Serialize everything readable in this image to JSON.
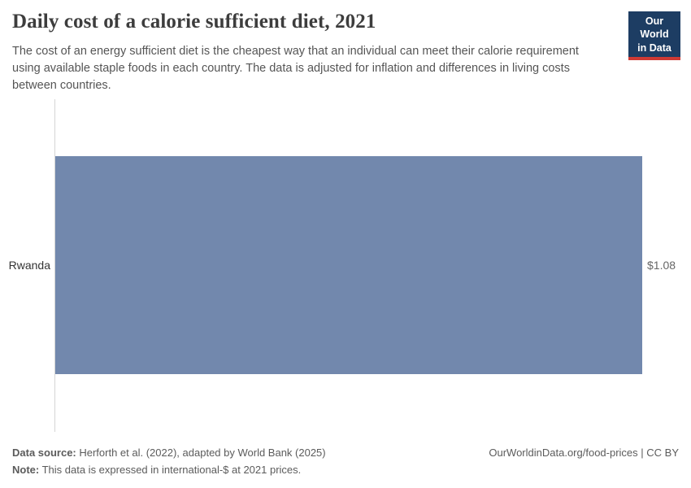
{
  "header": {
    "title": "Daily cost of a calorie sufficient diet, 2021",
    "logo": {
      "line1": "Our World",
      "line2": "in Data"
    }
  },
  "subtitle": "The cost of an energy sufficient diet is the cheapest way that an individual can meet their calorie requirement using available staple foods in each country. The data is adjusted for inflation and differences in living costs between countries.",
  "chart_data": {
    "type": "bar",
    "orientation": "horizontal",
    "title": "Daily cost of a calorie sufficient diet, 2021",
    "categories": [
      "Rwanda"
    ],
    "values": [
      1.08
    ],
    "value_labels": [
      "$1.08"
    ],
    "xlabel": "",
    "ylabel": "",
    "xlim": [
      0,
      1.08
    ],
    "grid": false,
    "legend": false,
    "bar_color": "#7288ad"
  },
  "footer": {
    "data_source_label": "Data source:",
    "data_source_text": " Herforth et al. (2022), adapted by World Bank (2025)",
    "note_label": "Note:",
    "note_text": " This data is expressed in international-$ at 2021 prices.",
    "license": "OurWorldinData.org/food-prices | CC BY"
  },
  "colors": {
    "bar": "#7288ad",
    "logo_background": "#1d3d63",
    "logo_underline": "#cf3a34",
    "axis_line": "#d5d5d5"
  }
}
